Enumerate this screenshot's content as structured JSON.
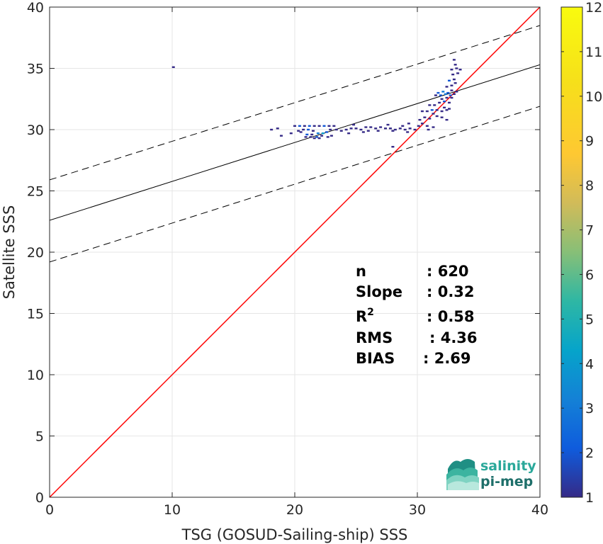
{
  "chart_data": {
    "type": "scatter",
    "xlabel": "TSG (GOSUD-Sailing-ship) SSS",
    "ylabel": "Satellite SSS",
    "xlim": [
      0,
      40
    ],
    "ylim": [
      0,
      40
    ],
    "xticks": [
      "0",
      "10",
      "20",
      "30",
      "40"
    ],
    "yticks": [
      "0",
      "5",
      "10",
      "15",
      "20",
      "25",
      "30",
      "35",
      "40"
    ],
    "grid": true,
    "colorbar": {
      "range": [
        1,
        12
      ],
      "ticks": [
        "1",
        "2",
        "3",
        "4",
        "5",
        "6",
        "7",
        "8",
        "9",
        "10",
        "11",
        "12"
      ],
      "colormap": "parula"
    },
    "lines": [
      {
        "role": "identity",
        "color": "#ff0000",
        "x": [
          0,
          40
        ],
        "y": [
          0,
          40
        ]
      },
      {
        "role": "fit",
        "color": "#000000",
        "x": [
          0,
          40
        ],
        "y": [
          22.6,
          35.3
        ]
      },
      {
        "role": "fit-upper",
        "color": "#000000",
        "dash": true,
        "x": [
          0,
          40
        ],
        "y": [
          25.9,
          38.5
        ]
      },
      {
        "role": "fit-lower",
        "color": "#000000",
        "dash": true,
        "x": [
          0,
          40
        ],
        "y": [
          19.2,
          31.9
        ]
      }
    ],
    "points": [
      {
        "x": 10.1,
        "y": 35.1,
        "c": 1
      },
      {
        "x": 18.1,
        "y": 30.0,
        "c": 1
      },
      {
        "x": 18.6,
        "y": 30.1,
        "c": 1
      },
      {
        "x": 18.9,
        "y": 29.5,
        "c": 1
      },
      {
        "x": 19.7,
        "y": 29.7,
        "c": 1
      },
      {
        "x": 20.0,
        "y": 30.3,
        "c": 1
      },
      {
        "x": 20.4,
        "y": 30.3,
        "c": 2
      },
      {
        "x": 20.8,
        "y": 30.3,
        "c": 1
      },
      {
        "x": 21.2,
        "y": 30.3,
        "c": 2
      },
      {
        "x": 21.6,
        "y": 30.3,
        "c": 1
      },
      {
        "x": 22.0,
        "y": 30.3,
        "c": 1
      },
      {
        "x": 22.4,
        "y": 30.3,
        "c": 2
      },
      {
        "x": 22.8,
        "y": 30.3,
        "c": 1
      },
      {
        "x": 23.2,
        "y": 30.3,
        "c": 1
      },
      {
        "x": 20.3,
        "y": 29.9,
        "c": 1
      },
      {
        "x": 20.7,
        "y": 30.0,
        "c": 1
      },
      {
        "x": 21.1,
        "y": 30.0,
        "c": 2
      },
      {
        "x": 21.5,
        "y": 29.9,
        "c": 1
      },
      {
        "x": 22.9,
        "y": 30.0,
        "c": 1
      },
      {
        "x": 20.5,
        "y": 29.8,
        "c": 1
      },
      {
        "x": 21.0,
        "y": 29.6,
        "c": 2
      },
      {
        "x": 21.4,
        "y": 29.6,
        "c": 1
      },
      {
        "x": 21.9,
        "y": 29.7,
        "c": 3
      },
      {
        "x": 22.3,
        "y": 29.7,
        "c": 4
      },
      {
        "x": 22.6,
        "y": 29.8,
        "c": 2
      },
      {
        "x": 20.9,
        "y": 29.4,
        "c": 1
      },
      {
        "x": 21.3,
        "y": 29.4,
        "c": 1
      },
      {
        "x": 21.8,
        "y": 29.4,
        "c": 2
      },
      {
        "x": 22.2,
        "y": 29.5,
        "c": 1
      },
      {
        "x": 22.7,
        "y": 29.4,
        "c": 1
      },
      {
        "x": 23.0,
        "y": 29.5,
        "c": 1
      },
      {
        "x": 21.6,
        "y": 29.3,
        "c": 1
      },
      {
        "x": 22.0,
        "y": 29.3,
        "c": 1
      },
      {
        "x": 23.4,
        "y": 30.0,
        "c": 1
      },
      {
        "x": 23.8,
        "y": 29.9,
        "c": 1
      },
      {
        "x": 24.2,
        "y": 30.0,
        "c": 1
      },
      {
        "x": 24.6,
        "y": 30.1,
        "c": 1
      },
      {
        "x": 25.0,
        "y": 30.1,
        "c": 1
      },
      {
        "x": 25.4,
        "y": 30.0,
        "c": 1
      },
      {
        "x": 25.8,
        "y": 30.2,
        "c": 1
      },
      {
        "x": 26.2,
        "y": 30.2,
        "c": 1
      },
      {
        "x": 26.6,
        "y": 30.1,
        "c": 1
      },
      {
        "x": 27.0,
        "y": 30.2,
        "c": 1
      },
      {
        "x": 27.4,
        "y": 30.1,
        "c": 1
      },
      {
        "x": 27.8,
        "y": 30.1,
        "c": 1
      },
      {
        "x": 28.2,
        "y": 30.0,
        "c": 1
      },
      {
        "x": 28.6,
        "y": 30.1,
        "c": 1
      },
      {
        "x": 29.0,
        "y": 30.0,
        "c": 1
      },
      {
        "x": 29.4,
        "y": 30.1,
        "c": 1
      },
      {
        "x": 29.8,
        "y": 30.0,
        "c": 1
      },
      {
        "x": 24.4,
        "y": 29.7,
        "c": 1
      },
      {
        "x": 25.6,
        "y": 29.8,
        "c": 1
      },
      {
        "x": 26.8,
        "y": 29.9,
        "c": 1
      },
      {
        "x": 28.0,
        "y": 29.9,
        "c": 1
      },
      {
        "x": 29.2,
        "y": 29.8,
        "c": 1
      },
      {
        "x": 26.0,
        "y": 29.9,
        "c": 1
      },
      {
        "x": 24.8,
        "y": 30.4,
        "c": 1
      },
      {
        "x": 27.6,
        "y": 30.4,
        "c": 1
      },
      {
        "x": 28.8,
        "y": 30.3,
        "c": 1
      },
      {
        "x": 28.0,
        "y": 28.6,
        "c": 1
      },
      {
        "x": 29.3,
        "y": 30.5,
        "c": 1
      },
      {
        "x": 30.1,
        "y": 30.3,
        "c": 1
      },
      {
        "x": 30.4,
        "y": 30.5,
        "c": 1
      },
      {
        "x": 30.8,
        "y": 30.3,
        "c": 1
      },
      {
        "x": 30.2,
        "y": 30.8,
        "c": 1
      },
      {
        "x": 30.6,
        "y": 31.0,
        "c": 1
      },
      {
        "x": 31.0,
        "y": 30.9,
        "c": 1
      },
      {
        "x": 30.9,
        "y": 30.0,
        "c": 1
      },
      {
        "x": 31.3,
        "y": 30.2,
        "c": 1
      },
      {
        "x": 30.4,
        "y": 31.5,
        "c": 1
      },
      {
        "x": 30.8,
        "y": 31.5,
        "c": 1
      },
      {
        "x": 31.2,
        "y": 31.6,
        "c": 2
      },
      {
        "x": 31.6,
        "y": 31.6,
        "c": 1
      },
      {
        "x": 32.0,
        "y": 31.5,
        "c": 1
      },
      {
        "x": 32.4,
        "y": 31.6,
        "c": 1
      },
      {
        "x": 31.0,
        "y": 32.0,
        "c": 1
      },
      {
        "x": 31.4,
        "y": 32.0,
        "c": 1
      },
      {
        "x": 31.8,
        "y": 32.2,
        "c": 1
      },
      {
        "x": 32.2,
        "y": 32.3,
        "c": 2
      },
      {
        "x": 32.6,
        "y": 32.2,
        "c": 1
      },
      {
        "x": 31.6,
        "y": 31.1,
        "c": 1
      },
      {
        "x": 32.0,
        "y": 31.0,
        "c": 1
      },
      {
        "x": 32.4,
        "y": 30.8,
        "c": 1
      },
      {
        "x": 32.0,
        "y": 32.5,
        "c": 1
      },
      {
        "x": 32.4,
        "y": 32.6,
        "c": 1
      },
      {
        "x": 32.8,
        "y": 32.6,
        "c": 1
      },
      {
        "x": 31.5,
        "y": 32.8,
        "c": 1
      },
      {
        "x": 31.9,
        "y": 32.8,
        "c": 2
      },
      {
        "x": 32.3,
        "y": 32.9,
        "c": 3
      },
      {
        "x": 32.7,
        "y": 32.8,
        "c": 2
      },
      {
        "x": 33.0,
        "y": 32.9,
        "c": 1
      },
      {
        "x": 31.7,
        "y": 33.0,
        "c": 2
      },
      {
        "x": 32.1,
        "y": 33.1,
        "c": 3
      },
      {
        "x": 32.5,
        "y": 33.0,
        "c": 2
      },
      {
        "x": 32.8,
        "y": 33.2,
        "c": 1
      },
      {
        "x": 33.2,
        "y": 33.1,
        "c": 1
      },
      {
        "x": 32.4,
        "y": 33.5,
        "c": 1
      },
      {
        "x": 32.8,
        "y": 33.6,
        "c": 1
      },
      {
        "x": 33.1,
        "y": 33.8,
        "c": 1
      },
      {
        "x": 32.6,
        "y": 34.0,
        "c": 2
      },
      {
        "x": 33.0,
        "y": 34.1,
        "c": 1
      },
      {
        "x": 32.9,
        "y": 34.5,
        "c": 1
      },
      {
        "x": 33.3,
        "y": 34.6,
        "c": 1
      },
      {
        "x": 32.8,
        "y": 34.9,
        "c": 1
      },
      {
        "x": 33.2,
        "y": 35.0,
        "c": 1
      },
      {
        "x": 33.5,
        "y": 34.9,
        "c": 1
      },
      {
        "x": 33.1,
        "y": 35.3,
        "c": 1
      },
      {
        "x": 33.0,
        "y": 35.7,
        "c": 1
      },
      {
        "x": 32.2,
        "y": 31.8,
        "c": 1
      },
      {
        "x": 32.6,
        "y": 31.7,
        "c": 1
      },
      {
        "x": 31.3,
        "y": 31.3,
        "c": 1
      }
    ]
  },
  "stats": [
    {
      "label": "n",
      "sup": "",
      "value": ": 620"
    },
    {
      "label": "Slope",
      "sup": "",
      "value": ": 0.32"
    },
    {
      "label": "R",
      "sup": "2",
      "value": ": 0.58"
    },
    {
      "label": "RMS",
      "sup": "",
      "value": ": 4.36"
    },
    {
      "label": "BIAS",
      "sup": "",
      "value": ": 2.69"
    }
  ],
  "logo": {
    "line1": "salinity",
    "line2": "pi-mep",
    "color1": "#2aa89a",
    "color2": "#1e6f6a"
  }
}
